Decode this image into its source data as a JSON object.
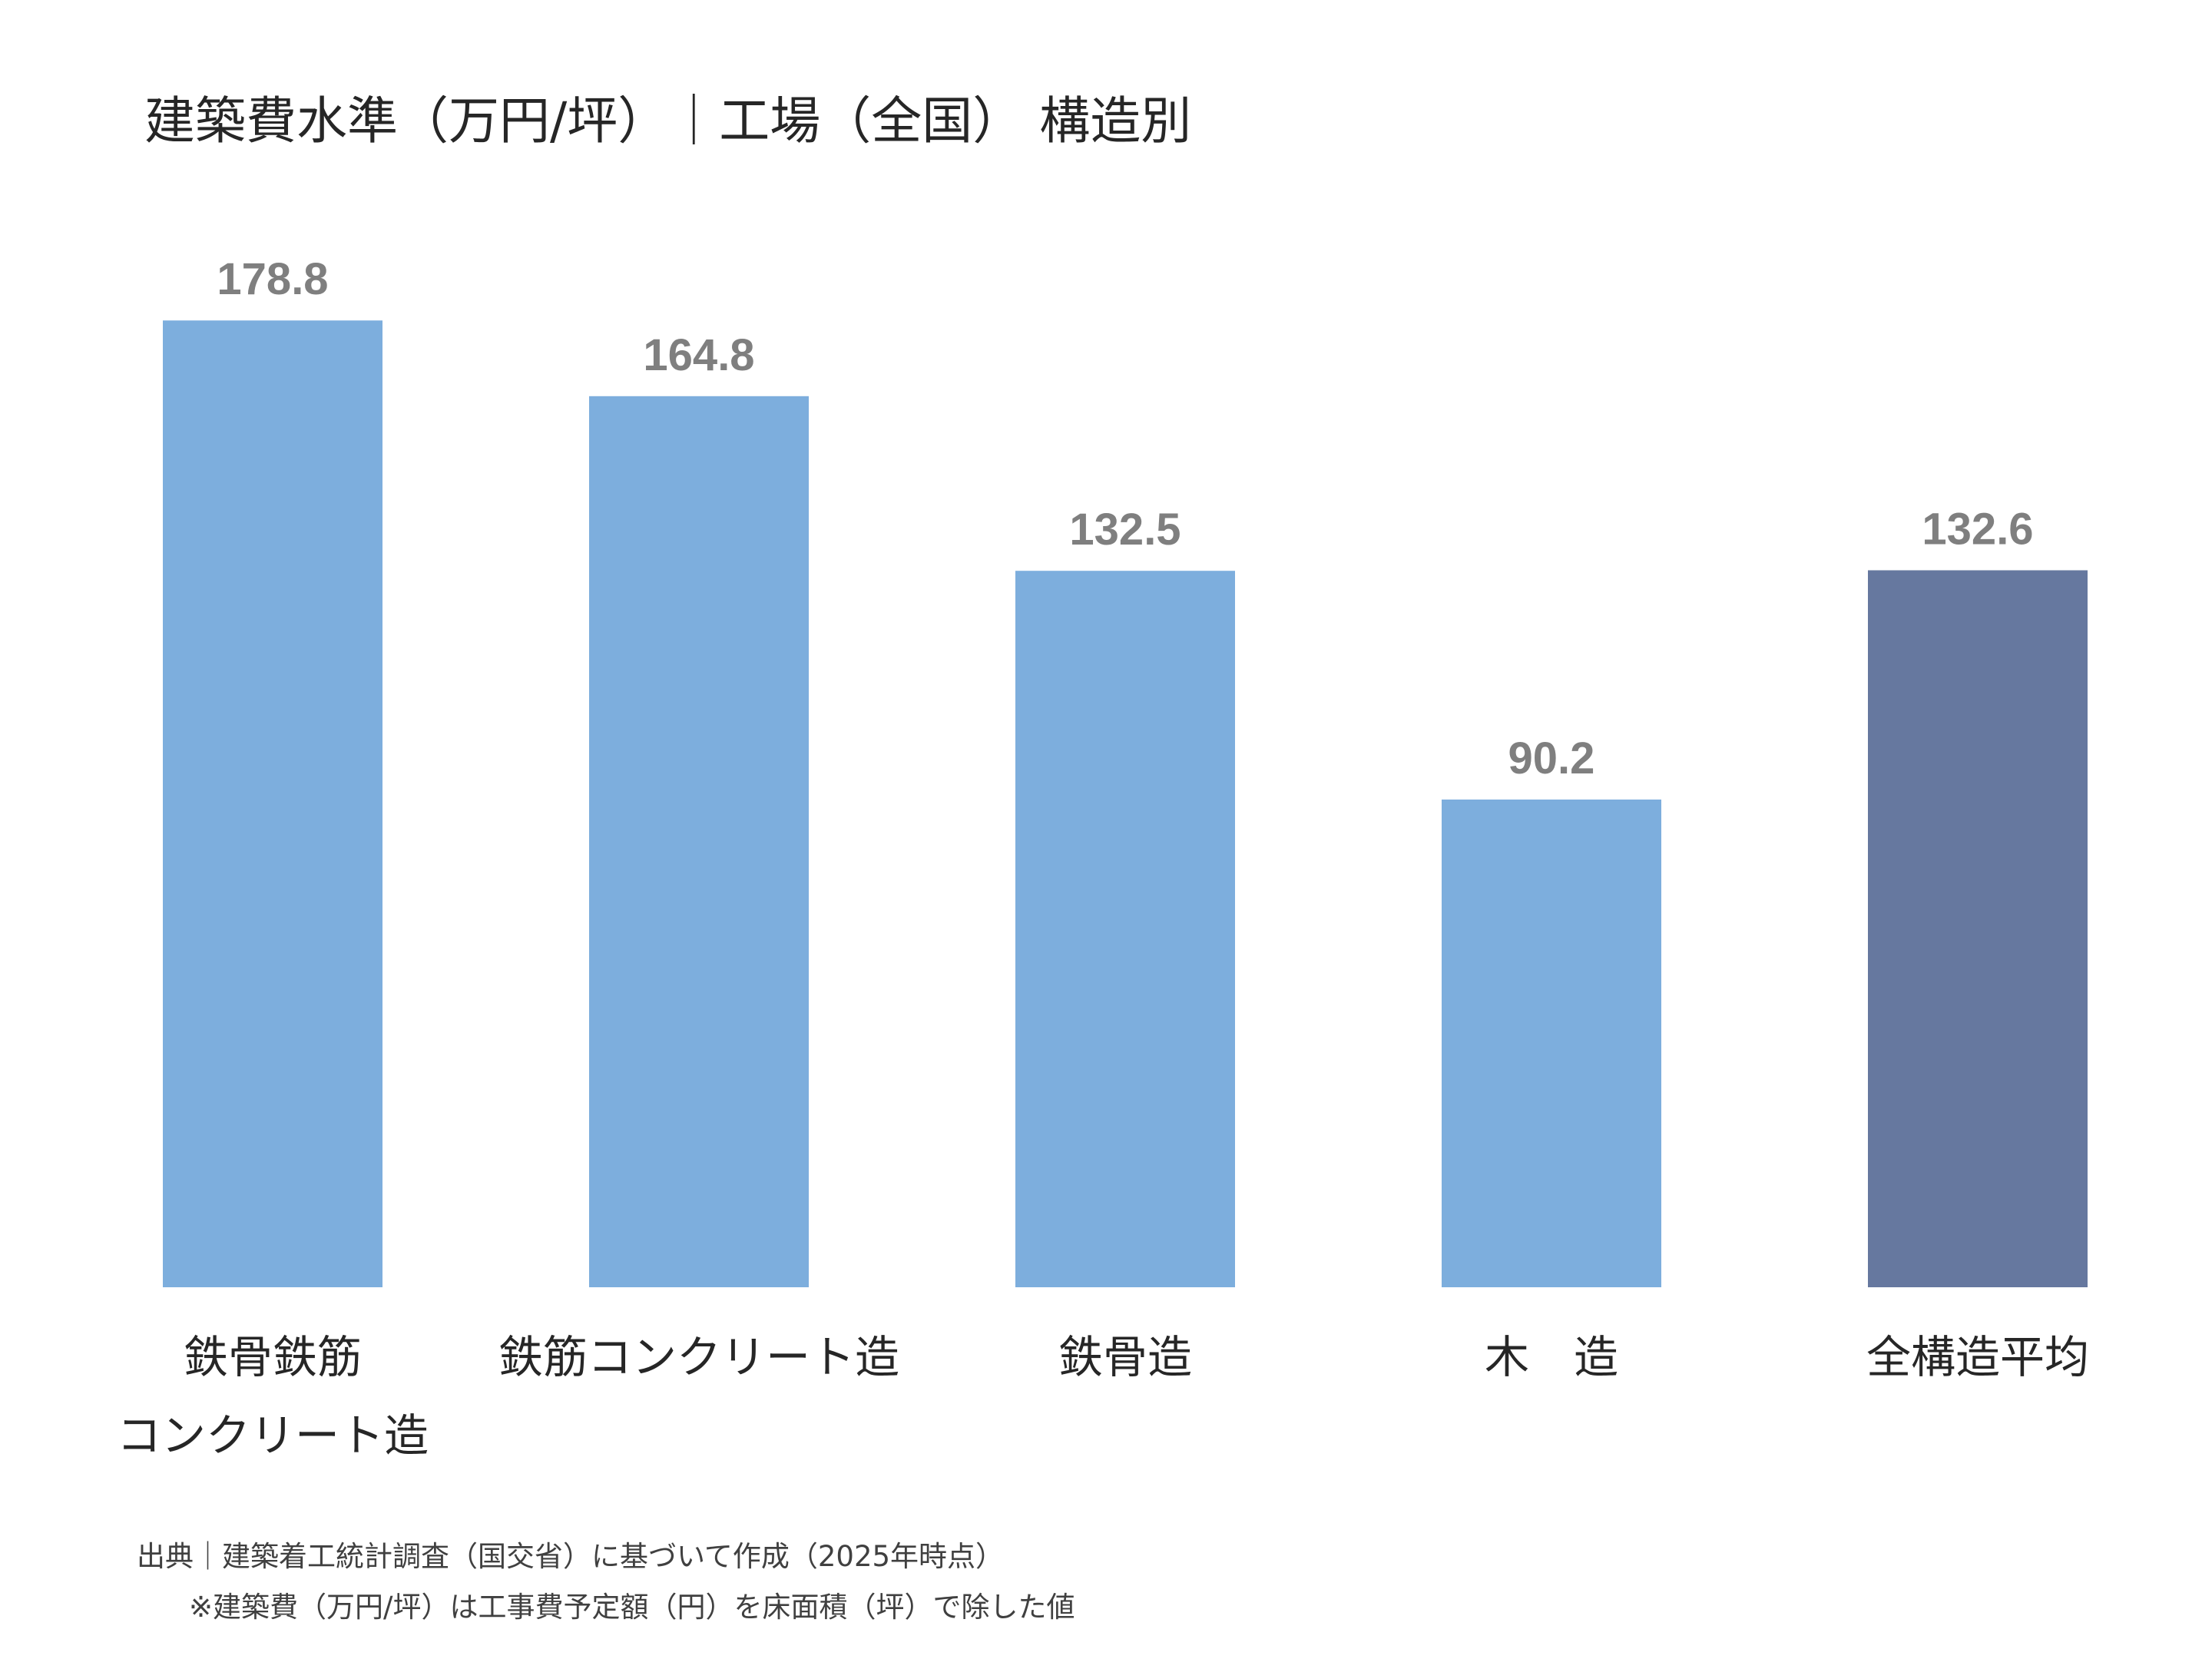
{
  "title": "建築費水準（万円/坪）｜工場（全国） 構造別",
  "chart_data": {
    "type": "bar",
    "title": "建築費水準（万円/坪）｜工場（全国） 構造別",
    "categories": [
      [
        "鉄骨鉄筋",
        "コンクリート造"
      ],
      [
        "鉄筋コンクリート造"
      ],
      [
        "鉄骨造"
      ],
      [
        "木　造"
      ],
      [
        "全構造平均"
      ]
    ],
    "values": [
      178.8,
      164.8,
      132.5,
      90.2,
      132.6
    ],
    "value_labels": [
      "178.8",
      "164.8",
      "132.5",
      "90.2",
      "132.6"
    ],
    "colors": [
      "#7DAEDD",
      "#7DAEDD",
      "#7DAEDD",
      "#7DAEDD",
      "#66789F"
    ],
    "value_label_color": "#7F7F7F",
    "ylim": [
      0,
      180
    ],
    "grid": false,
    "legend": "none",
    "xlabel": "",
    "ylabel": ""
  },
  "footnotes": {
    "source": "出典｜建築着工統計調査（国交省）に基づいて作成（2025年時点）",
    "note": "※建築費（万円/坪）は工事費予定額（円）を床面積（坪）で除した値"
  }
}
